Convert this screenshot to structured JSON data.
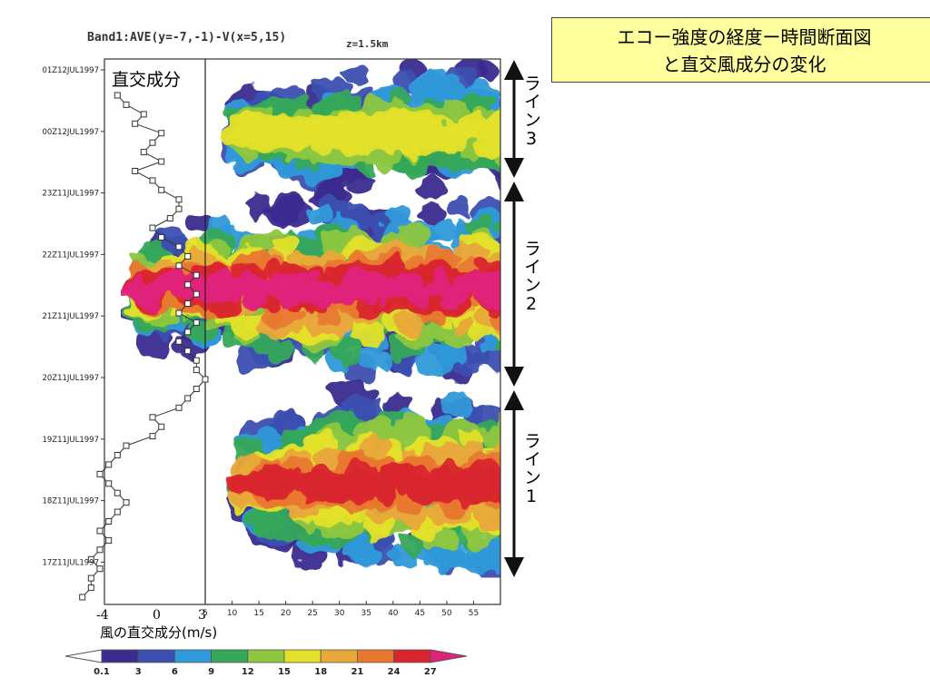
{
  "plot": {
    "title": "Band1:AVE(y=-7,-1)-V(x=5,15)",
    "level": "z=1.5km"
  },
  "callout": {
    "line1": "エコー強度の経度ー時間断面図",
    "line2": "と直交風成分の変化"
  },
  "wind_panel": {
    "label": "直交成分",
    "caption": "風の直交成分(m/s)",
    "ticks": [
      "-4",
      "0",
      "3"
    ]
  },
  "line_labels": [
    {
      "text": "ライン",
      "num": "3"
    },
    {
      "text": "ライン",
      "num": "2"
    },
    {
      "text": "ライン",
      "num": "1"
    }
  ],
  "colorbar": {
    "tick_labels": [
      "0.1",
      "3",
      "6",
      "9",
      "12",
      "15",
      "18",
      "21",
      "24",
      "27"
    ],
    "colors": [
      "#3a2c8f",
      "#3b4fb0",
      "#2f99d9",
      "#35a85a",
      "#8dc63f",
      "#e3e02a",
      "#e8a83a",
      "#e8782f",
      "#d9262e",
      "#e0227a"
    ]
  },
  "chart_data": [
    {
      "type": "heatmap",
      "title": "Band1:AVE(y=-7,-1)-V(x=5,15)",
      "subtitle": "z=1.5km",
      "xlabel": "",
      "ylabel": "",
      "x_tick_labels": [
        "5",
        "10",
        "15",
        "20",
        "25",
        "30",
        "35",
        "40",
        "45",
        "50",
        "55"
      ],
      "y_tick_labels": [
        "01Z12JUL1997",
        "00Z12JUL1997",
        "23Z11JUL1997",
        "22Z11JUL1997",
        "21Z11JUL1997",
        "20Z11JUL1997",
        "19Z11JUL1997",
        "18Z11JUL1997",
        "17Z11JUL1997"
      ],
      "colorbar_levels": [
        0.1,
        3,
        6,
        9,
        12,
        15,
        18,
        21,
        24,
        27
      ],
      "bands": [
        {
          "name": "ライン3",
          "time_start": "22.85Z11JUL1997",
          "time_end": "01.1Z12JUL1997",
          "peak_level": 15
        },
        {
          "name": "ライン2",
          "time_start": "19.95Z11JUL1997",
          "time_end": "22.95Z11JUL1997",
          "peak_level": 27
        },
        {
          "name": "ライン1",
          "time_start": "16.6Z11JUL1997",
          "time_end": "19.95Z11JUL1997",
          "peak_level": 24
        }
      ]
    },
    {
      "type": "line",
      "title": "直交成分",
      "xlabel": "風の直交成分(m/s)",
      "x_tick_labels": [
        "-4",
        "0",
        "3"
      ],
      "xlim": [
        -4,
        3
      ],
      "reference_line_x": 3,
      "series": [
        {
          "values": [
            -2,
            -1.5,
            -0.5,
            -1,
            0.5,
            0,
            -0.5,
            0.5,
            -1,
            0,
            0.5,
            1.5,
            1.5,
            1,
            0,
            0.5,
            1.5,
            2,
            1.5,
            2.5,
            2,
            2.5,
            2,
            1.5,
            2.5,
            2,
            1.5,
            2,
            2.5,
            2.5,
            3,
            2.5,
            2,
            1.5,
            0,
            0.5,
            0,
            -1.5,
            -2,
            -2.5,
            -3,
            -2.5,
            -2,
            -1.5,
            -2,
            -2.5,
            -3,
            -2.5,
            -3,
            -3.5,
            -3,
            -3.5,
            -3.5,
            -4
          ]
        }
      ]
    }
  ]
}
